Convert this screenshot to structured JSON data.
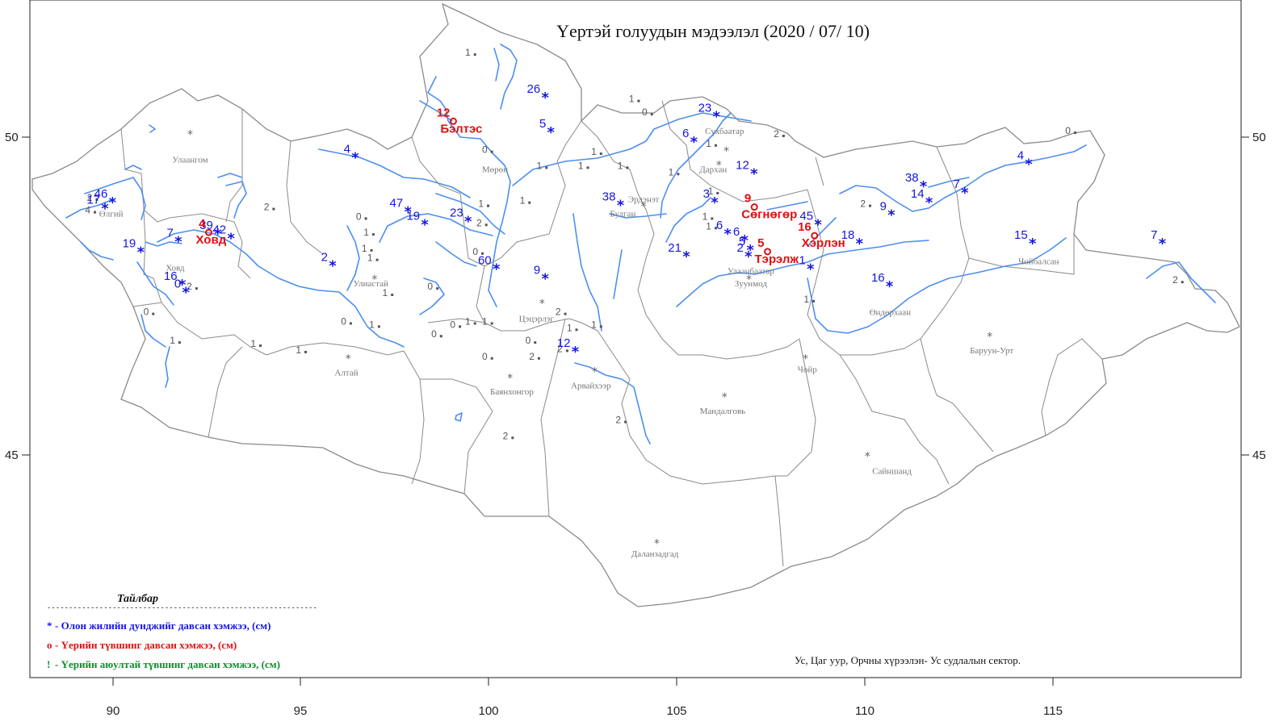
{
  "title": "Үертэй голуудын мэдээлэл (2020 / 07/ 10)",
  "x_axis": {
    "ticks": [
      "90",
      "95",
      "100",
      "105",
      "110",
      "115"
    ]
  },
  "y_axis": {
    "ticks": [
      "50",
      "45"
    ]
  },
  "legend": {
    "title": "Тайлбар",
    "divider": "--------------------------------------------------------------",
    "items": [
      {
        "symbol": "*",
        "text": "- Олон жилийн дунджийг давсан хэмжээ, (см)",
        "color": "#1515e0"
      },
      {
        "symbol": "o",
        "text": "- Үерийн түвшинг давсан хэмжээ, (см)",
        "color": "#e01010"
      },
      {
        "symbol": "!",
        "text": "- Үерийн аюултай түвшинг давсан хэмжээ, (см)",
        "color": "#0a8f2a"
      }
    ]
  },
  "credit": "Ус, Цаг уур, Орчны хүрээлэн- Ус судлалын сектор.",
  "colors": {
    "river": "#4d8ff0",
    "border": "#8a8a8a",
    "over_average": "#1515e0",
    "over_flood": "#e01010",
    "over_danger": "#0a8f2a"
  },
  "cities": [
    {
      "name": "Улаангом",
      "lon": 92.05,
      "lat": 49.6
    },
    {
      "name": "Өлгий",
      "lon": 89.95,
      "lat": 48.75
    },
    {
      "name": "Ховд",
      "lon": 91.65,
      "lat": 47.9
    },
    {
      "name": "Улиастай",
      "lon": 96.85,
      "lat": 47.65
    },
    {
      "name": "Мөрөн",
      "lon": 100.15,
      "lat": 49.45
    },
    {
      "name": "Булган",
      "lon": 103.55,
      "lat": 48.75
    },
    {
      "name": "Эрдэнэт",
      "lon": 104.1,
      "lat": 48.98
    },
    {
      "name": "Сүхбаатар",
      "lon": 106.25,
      "lat": 50.05
    },
    {
      "name": "Дархан",
      "lon": 105.95,
      "lat": 49.45
    },
    {
      "name": "Улаанбаатар",
      "lon": 106.95,
      "lat": 47.85
    },
    {
      "name": "Зуунмод",
      "lon": 106.95,
      "lat": 47.65
    },
    {
      "name": "Цэцэрлэг",
      "lon": 101.25,
      "lat": 47.1
    },
    {
      "name": "Алтай",
      "lon": 96.2,
      "lat": 46.25
    },
    {
      "name": "Баянхонгор",
      "lon": 100.6,
      "lat": 45.95
    },
    {
      "name": "Арвайхээр",
      "lon": 102.7,
      "lat": 46.05
    },
    {
      "name": "Мандалговь",
      "lon": 106.2,
      "lat": 45.65
    },
    {
      "name": "Чойр",
      "lon": 108.45,
      "lat": 46.3
    },
    {
      "name": "Сайншанд",
      "lon": 110.7,
      "lat": 44.7
    },
    {
      "name": "Даланзадгад",
      "lon": 104.4,
      "lat": 43.4
    },
    {
      "name": "Өндөрхаан",
      "lon": 110.65,
      "lat": 47.2
    },
    {
      "name": "Баруун-Урт",
      "lon": 113.35,
      "lat": 46.6
    },
    {
      "name": "Чойбалсан",
      "lon": 114.6,
      "lat": 48.0
    }
  ],
  "aimag_centers": [
    {
      "lon": 92.05,
      "lat": 49.98
    },
    {
      "lon": 96.95,
      "lat": 47.7
    },
    {
      "lon": 101.4,
      "lat": 47.32
    },
    {
      "lon": 96.25,
      "lat": 46.45
    },
    {
      "lon": 100.55,
      "lat": 46.15
    },
    {
      "lon": 102.8,
      "lat": 46.25
    },
    {
      "lon": 104.1,
      "lat": 48.85
    },
    {
      "lon": 106.1,
      "lat": 49.5
    },
    {
      "lon": 106.9,
      "lat": 47.7
    },
    {
      "lon": 106.25,
      "lat": 45.85
    },
    {
      "lon": 108.4,
      "lat": 46.45
    },
    {
      "lon": 110.05,
      "lat": 44.92
    },
    {
      "lon": 104.45,
      "lat": 43.55
    },
    {
      "lon": 113.3,
      "lat": 46.8
    },
    {
      "lon": 106.3,
      "lat": 49.72
    }
  ],
  "gray_values": [
    {
      "value": "1",
      "lon": 99.5,
      "lat": 51.28
    },
    {
      "value": "0",
      "lon": 104.2,
      "lat": 50.34
    },
    {
      "value": "1",
      "lon": 103.85,
      "lat": 50.55
    },
    {
      "value": "2",
      "lon": 107.7,
      "lat": 50.0
    },
    {
      "value": "0",
      "lon": 115.45,
      "lat": 50.05
    },
    {
      "value": "2",
      "lon": 89.45,
      "lat": 49.0
    },
    {
      "value": "4",
      "lon": 89.4,
      "lat": 48.8
    },
    {
      "value": "2",
      "lon": 94.15,
      "lat": 48.85
    },
    {
      "value": "0",
      "lon": 96.6,
      "lat": 48.7
    },
    {
      "value": "1",
      "lon": 96.8,
      "lat": 48.45
    },
    {
      "value": "1",
      "lon": 96.75,
      "lat": 48.2
    },
    {
      "value": "1",
      "lon": 96.9,
      "lat": 48.05
    },
    {
      "value": "0",
      "lon": 99.95,
      "lat": 49.75
    },
    {
      "value": "1",
      "lon": 101.4,
      "lat": 49.5
    },
    {
      "value": "1",
      "lon": 102.5,
      "lat": 49.5
    },
    {
      "value": "1",
      "lon": 102.85,
      "lat": 49.72
    },
    {
      "value": "1",
      "lon": 103.55,
      "lat": 49.5
    },
    {
      "value": "1",
      "lon": 99.85,
      "lat": 48.9
    },
    {
      "value": "2",
      "lon": 99.8,
      "lat": 48.6
    },
    {
      "value": "0",
      "lon": 99.7,
      "lat": 48.15
    },
    {
      "value": "1",
      "lon": 100.95,
      "lat": 48.95
    },
    {
      "value": "1",
      "lon": 104.9,
      "lat": 49.4
    },
    {
      "value": "1",
      "lon": 105.9,
      "lat": 49.85
    },
    {
      "value": "1",
      "lon": 105.95,
      "lat": 49.1
    },
    {
      "value": "1",
      "lon": 105.8,
      "lat": 48.7
    },
    {
      "value": "0",
      "lon": 98.5,
      "lat": 47.6
    },
    {
      "value": "1",
      "lon": 97.3,
      "lat": 47.5
    },
    {
      "value": "0",
      "lon": 96.2,
      "lat": 47.05
    },
    {
      "value": "1",
      "lon": 96.95,
      "lat": 47.0
    },
    {
      "value": "0",
      "lon": 98.6,
      "lat": 46.85
    },
    {
      "value": "0",
      "lon": 99.1,
      "lat": 47.0
    },
    {
      "value": "1",
      "lon": 99.5,
      "lat": 47.05
    },
    {
      "value": "1",
      "lon": 99.95,
      "lat": 47.05
    },
    {
      "value": "0",
      "lon": 99.95,
      "lat": 46.5
    },
    {
      "value": "0",
      "lon": 101.1,
      "lat": 46.75
    },
    {
      "value": "2",
      "lon": 101.2,
      "lat": 46.5
    },
    {
      "value": "2",
      "lon": 101.95,
      "lat": 46.62
    },
    {
      "value": "2",
      "lon": 101.9,
      "lat": 47.2
    },
    {
      "value": "1",
      "lon": 102.2,
      "lat": 46.95
    },
    {
      "value": "1",
      "lon": 102.85,
      "lat": 47.0
    },
    {
      "value": "1",
      "lon": 93.8,
      "lat": 46.7
    },
    {
      "value": "1",
      "lon": 95.0,
      "lat": 46.6
    },
    {
      "value": "1",
      "lon": 91.65,
      "lat": 46.75
    },
    {
      "value": "0",
      "lon": 90.95,
      "lat": 47.2
    },
    {
      "value": "2",
      "lon": 92.1,
      "lat": 47.6
    },
    {
      "value": "2",
      "lon": 100.5,
      "lat": 45.25
    },
    {
      "value": "2",
      "lon": 103.5,
      "lat": 45.5
    },
    {
      "value": "1",
      "lon": 108.5,
      "lat": 47.4
    },
    {
      "value": "2",
      "lon": 110.0,
      "lat": 48.9
    },
    {
      "value": "2",
      "lon": 118.3,
      "lat": 47.7
    },
    {
      "value": "1",
      "lon": 105.9,
      "lat": 48.55
    }
  ],
  "blue_stations": [
    {
      "value": "17",
      "lon": 89.7,
      "lat": 48.9
    },
    {
      "value": "46",
      "lon": 89.9,
      "lat": 49.0
    },
    {
      "value": "19",
      "lon": 90.65,
      "lat": 48.22
    },
    {
      "value": "7",
      "lon": 91.65,
      "lat": 48.38
    },
    {
      "value": "39",
      "lon": 92.7,
      "lat": 48.5
    },
    {
      "value": "42",
      "lon": 93.05,
      "lat": 48.43
    },
    {
      "value": "16",
      "lon": 91.75,
      "lat": 47.7
    },
    {
      "value": "0",
      "lon": 91.85,
      "lat": 47.58
    },
    {
      "value": "2",
      "lon": 95.75,
      "lat": 48.0
    },
    {
      "value": "4",
      "lon": 96.35,
      "lat": 49.7
    },
    {
      "value": "47",
      "lon": 97.75,
      "lat": 48.85
    },
    {
      "value": "19",
      "lon": 98.2,
      "lat": 48.65
    },
    {
      "value": "23",
      "lon": 99.35,
      "lat": 48.7
    },
    {
      "value": "60",
      "lon": 100.1,
      "lat": 47.95
    },
    {
      "value": "26",
      "lon": 101.4,
      "lat": 50.65
    },
    {
      "value": "5",
      "lon": 101.55,
      "lat": 50.1
    },
    {
      "value": "9",
      "lon": 101.4,
      "lat": 47.8
    },
    {
      "value": "12",
      "lon": 102.2,
      "lat": 46.65
    },
    {
      "value": "38",
      "lon": 103.4,
      "lat": 48.95
    },
    {
      "value": "23",
      "lon": 105.95,
      "lat": 50.35
    },
    {
      "value": "6",
      "lon": 105.35,
      "lat": 49.95
    },
    {
      "value": "12",
      "lon": 106.95,
      "lat": 49.45
    },
    {
      "value": "3",
      "lon": 105.9,
      "lat": 49.0
    },
    {
      "value": "6",
      "lon": 106.25,
      "lat": 48.5
    },
    {
      "value": "6",
      "lon": 106.7,
      "lat": 48.4
    },
    {
      "value": "5",
      "lon": 106.85,
      "lat": 48.25
    },
    {
      "value": "2",
      "lon": 106.8,
      "lat": 48.15
    },
    {
      "value": "21",
      "lon": 105.15,
      "lat": 48.15
    },
    {
      "value": "45",
      "lon": 108.65,
      "lat": 48.65
    },
    {
      "value": "1",
      "lon": 108.45,
      "lat": 47.95
    },
    {
      "value": "18",
      "lon": 109.75,
      "lat": 48.35
    },
    {
      "value": "9",
      "lon": 110.6,
      "lat": 48.8
    },
    {
      "value": "38",
      "lon": 111.45,
      "lat": 49.25
    },
    {
      "value": "14",
      "lon": 111.6,
      "lat": 49.0
    },
    {
      "value": "7",
      "lon": 112.55,
      "lat": 49.15
    },
    {
      "value": "4",
      "lon": 114.25,
      "lat": 49.6
    },
    {
      "value": "15",
      "lon": 114.35,
      "lat": 48.35
    },
    {
      "value": "16",
      "lon": 110.55,
      "lat": 47.68
    },
    {
      "value": "7",
      "lon": 117.8,
      "lat": 48.35
    }
  ],
  "red_stations": [
    {
      "value": "12",
      "name": "Бэлтэс",
      "lon": 99.0,
      "lat": 50.25
    },
    {
      "value": "4",
      "name": "Ховд",
      "lon": 92.5,
      "lat": 48.5
    },
    {
      "value": "9",
      "name": "Сөгнөгөр",
      "lon": 107.0,
      "lat": 48.9
    },
    {
      "value": "5",
      "name": "Тэрэлж",
      "lon": 107.35,
      "lat": 48.2
    },
    {
      "value": "16",
      "name": "Хэрлэн",
      "lon": 108.6,
      "lat": 48.45
    }
  ]
}
